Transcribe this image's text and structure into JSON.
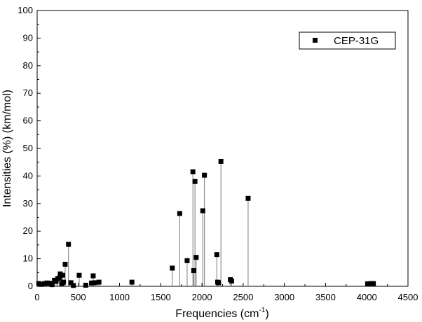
{
  "chart_data": {
    "type": "scatter",
    "style": "stem-with-square-markers",
    "xlabel_main": "Frequencies (cm",
    "xlabel_sup": "-1",
    "xlabel_end": ")",
    "ylabel": "Intensities (%) (km/mol)",
    "xlim": [
      0,
      4500
    ],
    "ylim": [
      0,
      100
    ],
    "x_ticks": [
      0,
      500,
      1000,
      1500,
      2000,
      2500,
      3000,
      3500,
      4000,
      4500
    ],
    "y_ticks": [
      0,
      10,
      20,
      30,
      40,
      50,
      60,
      70,
      80,
      90,
      100
    ],
    "legend_position": "top-right",
    "series": [
      {
        "name": "CEP-31G",
        "color": "#000000",
        "points": [
          [
            20,
            1.0
          ],
          [
            50,
            0.7
          ],
          [
            90,
            1.0
          ],
          [
            120,
            1.2
          ],
          [
            150,
            1.1
          ],
          [
            180,
            0.6
          ],
          [
            210,
            2.2
          ],
          [
            230,
            1.8
          ],
          [
            250,
            2.8
          ],
          [
            270,
            3.0
          ],
          [
            280,
            4.5
          ],
          [
            300,
            1.0
          ],
          [
            310,
            4.0
          ],
          [
            320,
            1.5
          ],
          [
            340,
            8.0
          ],
          [
            380,
            15.2
          ],
          [
            410,
            1.3
          ],
          [
            440,
            0.3
          ],
          [
            510,
            4.0
          ],
          [
            590,
            0.4
          ],
          [
            660,
            1.2
          ],
          [
            680,
            3.8
          ],
          [
            700,
            1.3
          ],
          [
            750,
            1.5
          ],
          [
            1150,
            1.5
          ],
          [
            1640,
            6.6
          ],
          [
            1730,
            26.4
          ],
          [
            1820,
            9.3
          ],
          [
            1890,
            41.5
          ],
          [
            1900,
            5.7
          ],
          [
            1915,
            38.0
          ],
          [
            1930,
            10.5
          ],
          [
            2010,
            27.4
          ],
          [
            2030,
            40.3
          ],
          [
            2180,
            11.5
          ],
          [
            2190,
            1.5
          ],
          [
            2200,
            1.3
          ],
          [
            2230,
            45.3
          ],
          [
            2345,
            2.4
          ],
          [
            2360,
            1.9
          ],
          [
            2560,
            31.9
          ],
          [
            4010,
            0.9
          ],
          [
            4050,
            1.0
          ],
          [
            4080,
            1.0
          ]
        ]
      }
    ]
  }
}
